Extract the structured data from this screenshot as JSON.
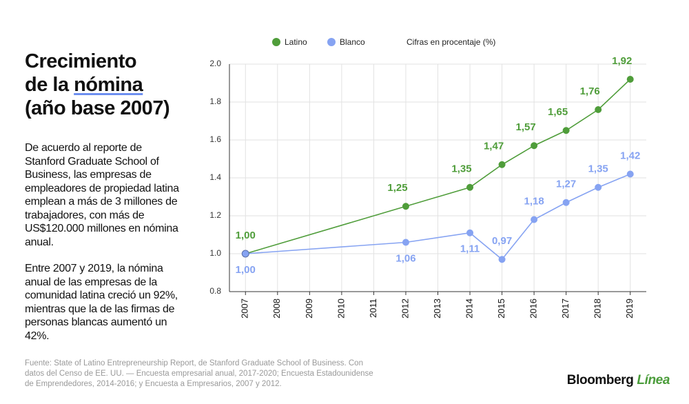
{
  "panel": {
    "title": [
      "Crecimiento",
      "de la",
      "nómina",
      "(año base 2007)"
    ],
    "paragraphs": [
      "De acuerdo al reporte de Stanford Graduate School of Business, las empresas de empleadores de propiedad latina emplean a más de 3 millones de trabajadores, con más de US$120.000 millones en nómina anual.",
      "Entre 2007 y 2019, la nómina anual de las empresas de la comunidad latina creció un 92%, mientras que la de las firmas de personas blancas aumentó un 42%."
    ],
    "source": "Fuente: State of Latino Entrepreneurship Report, de Stanford Graduate School of Business. Con datos del Censo de EE. UU. — Encuesta empresarial anual, 2017-2020; Encuesta Estadounidense de Emprendedores, 2014-2016; y Encuesta a Empresarios, 2007 y 2012.",
    "brand": [
      "Bloomberg",
      "Línea"
    ]
  },
  "chart_data": {
    "type": "line",
    "note": "Cifras en procentaje (%)",
    "x": [
      2007,
      2012,
      2014,
      2015,
      2016,
      2017,
      2018,
      2019
    ],
    "series": [
      {
        "name": "Latino",
        "color": "#4f9d3a",
        "values": [
          1.0,
          1.25,
          1.35,
          1.47,
          1.57,
          1.65,
          1.76,
          1.92
        ],
        "value_labels": [
          "1,00",
          "1,25",
          "1,35",
          "1,47",
          "1,57",
          "1,65",
          "1,76",
          "1,92"
        ]
      },
      {
        "name": "Blanco",
        "color": "#86a3f2",
        "values": [
          1.0,
          1.06,
          1.11,
          0.97,
          1.18,
          1.27,
          1.35,
          1.42
        ],
        "value_labels": [
          "1,00",
          "1,06",
          "1,11",
          "0,97",
          "1,18",
          "1,27",
          "1,35",
          "1,42"
        ]
      }
    ],
    "xlim": [
      2006.5,
      2019.5
    ],
    "xticks": [
      2007,
      2008,
      2009,
      2010,
      2011,
      2012,
      2013,
      2014,
      2015,
      2016,
      2017,
      2018,
      2019
    ],
    "ylim": [
      0.8,
      2.0
    ],
    "yticks": [
      0.8,
      {
        "value": 1,
        "label": "1.0"
      },
      1.2,
      1.4,
      1.6,
      1.8,
      {
        "value": 2,
        "label": "2.0"
      }
    ],
    "grid": true
  }
}
